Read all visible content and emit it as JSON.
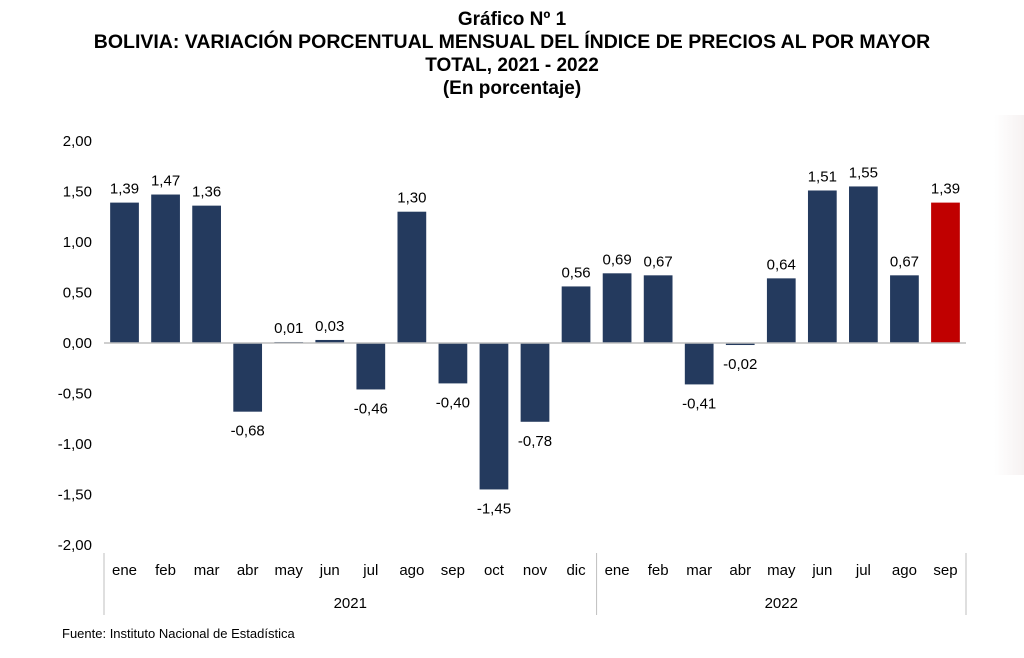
{
  "titles": {
    "line1": "Gráfico Nº 1",
    "line2": "BOLIVIA: VARIACIÓN PORCENTUAL MENSUAL DEL ÍNDICE DE PRECIOS AL POR MAYOR",
    "line3": "TOTAL, 2021 - 2022",
    "line4": "(En porcentaje)"
  },
  "source": "Fuente: Instituto Nacional de Estadística",
  "colors": {
    "bar": "#243a5e",
    "highlight": "#c00000",
    "zero_line": "#bfbfbf",
    "text": "#000000"
  },
  "chart_data": {
    "type": "bar",
    "title": "BOLIVIA: VARIACIÓN PORCENTUAL MENSUAL DEL ÍNDICE DE PRECIOS AL POR MAYOR TOTAL, 2021 - 2022",
    "subtitle": "(En porcentaje)",
    "ylim": [
      -2.0,
      2.0
    ],
    "yticks": [
      "-2,00",
      "-1,50",
      "-1,00",
      "-0,50",
      "0,00",
      "0,50",
      "1,00",
      "1,50",
      "2,00"
    ],
    "grid": false,
    "categories": [
      "ene",
      "feb",
      "mar",
      "abr",
      "may",
      "jun",
      "jul",
      "ago",
      "sep",
      "oct",
      "nov",
      "dic",
      "ene",
      "feb",
      "mar",
      "abr",
      "may",
      "jun",
      "jul",
      "ago",
      "sep"
    ],
    "values": [
      1.39,
      1.47,
      1.36,
      -0.68,
      0.01,
      0.03,
      -0.46,
      1.3,
      -0.4,
      -1.45,
      -0.78,
      0.56,
      0.69,
      0.67,
      -0.41,
      -0.02,
      0.64,
      1.51,
      1.55,
      0.67,
      1.39
    ],
    "labels": [
      "1,39",
      "1,47",
      "1,36",
      "-0,68",
      "0,01",
      "0,03",
      "-0,46",
      "1,30",
      "-0,40",
      "-1,45",
      "-0,78",
      "0,56",
      "0,69",
      "0,67",
      "-0,41",
      "-0,02",
      "0,64",
      "1,51",
      "1,55",
      "0,67",
      "1,39"
    ],
    "highlight_index": 20,
    "groups": [
      {
        "label": "2021",
        "count": 12
      },
      {
        "label": "2022",
        "count": 9
      }
    ]
  }
}
